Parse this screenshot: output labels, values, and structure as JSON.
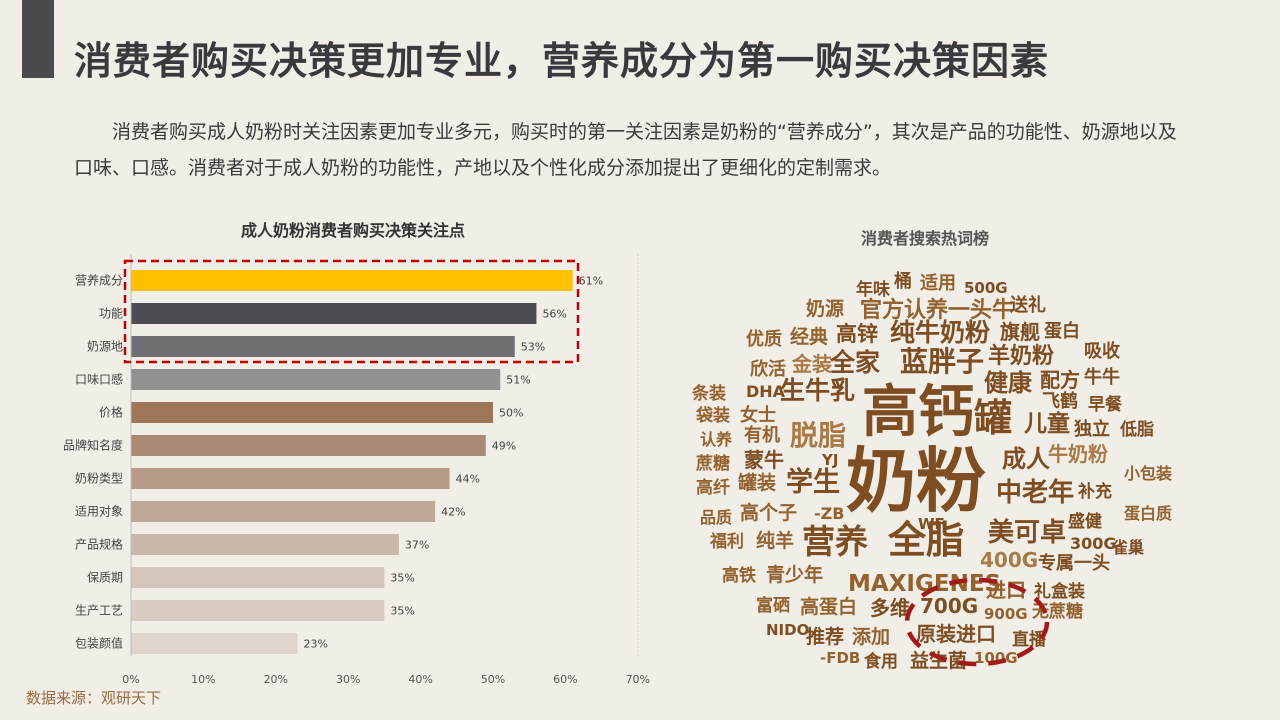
{
  "page": {
    "title": "消费者购买决策更加专业，营养成分为第一购买决策因素",
    "intro": "消费者购买成人奶粉时关注因素更加专业多元，购买时的第一关注因素是奶粉的“营养成分”，其次是产品的功能性、奶源地以及口味、口感。消费者对于成人奶粉的功能性，产地以及个性化成分添加提出了更细化的定制需求。",
    "source": "数据来源：观研天下"
  },
  "chart_data": {
    "type": "bar",
    "orientation": "horizontal",
    "title": "成人奶粉消费者购买决策关注点",
    "categories": [
      "营养成分",
      "功能",
      "奶源地",
      "口味口感",
      "价格",
      "品牌知名度",
      "奶粉类型",
      "适用对象",
      "产品规格",
      "保质期",
      "生产工艺",
      "包装颜值"
    ],
    "values": [
      61,
      56,
      53,
      51,
      50,
      49,
      44,
      42,
      37,
      35,
      35,
      23
    ],
    "value_labels": [
      "61%",
      "56%",
      "53%",
      "51%",
      "50%",
      "49%",
      "44%",
      "42%",
      "37%",
      "35%",
      "35%",
      "23%"
    ],
    "bar_colors": [
      "#ffc000",
      "#4d4c52",
      "#6f6e72",
      "#939190",
      "#9e7558",
      "#ab8a74",
      "#b59a87",
      "#bea897",
      "#c9b7a9",
      "#d4c6bb",
      "#d9ccc2",
      "#e0d5cc"
    ],
    "xlim": [
      0,
      70
    ],
    "xticks": [
      "0%",
      "10%",
      "20%",
      "30%",
      "40%",
      "50%",
      "60%",
      "70%"
    ],
    "highlight": "top-3 dashed red box",
    "highlight_color": "#c00000"
  },
  "word_cloud": {
    "title": "消费者搜索热词榜",
    "highlight_color": "#a31a1a",
    "words": [
      {
        "text": "桶"
      },
      {
        "text": "年味"
      },
      {
        "text": "适用"
      },
      {
        "text": "500G"
      },
      {
        "text": "奶源"
      },
      {
        "text": "官方认养一头牛"
      },
      {
        "text": "送礼"
      },
      {
        "text": "优质"
      },
      {
        "text": "经典"
      },
      {
        "text": "高锌"
      },
      {
        "text": "纯牛奶粉"
      },
      {
        "text": "旗舰"
      },
      {
        "text": "蛋白"
      },
      {
        "text": "欣活"
      },
      {
        "text": "金装"
      },
      {
        "text": "全家"
      },
      {
        "text": "蓝胖子"
      },
      {
        "text": "羊奶粉"
      },
      {
        "text": "吸收"
      },
      {
        "text": "条装"
      },
      {
        "text": "DHA"
      },
      {
        "text": "生牛乳"
      },
      {
        "text": "高钙"
      },
      {
        "text": "健康"
      },
      {
        "text": "配方"
      },
      {
        "text": "牛牛"
      },
      {
        "text": "袋装"
      },
      {
        "text": "女士"
      },
      {
        "text": "飞鹤"
      },
      {
        "text": "早餐"
      },
      {
        "text": "罐"
      },
      {
        "text": "儿童"
      },
      {
        "text": "独立"
      },
      {
        "text": "低脂"
      },
      {
        "text": "认养"
      },
      {
        "text": "有机"
      },
      {
        "text": "脱脂"
      },
      {
        "text": "蔗糖"
      },
      {
        "text": "蒙牛"
      },
      {
        "text": "奶粉"
      },
      {
        "text": "成人"
      },
      {
        "text": "牛奶粉"
      },
      {
        "text": "YJ"
      },
      {
        "text": "高纤"
      },
      {
        "text": "罐装"
      },
      {
        "text": "学生"
      },
      {
        "text": "小包装"
      },
      {
        "text": "中老年"
      },
      {
        "text": "补充"
      },
      {
        "text": "品质"
      },
      {
        "text": "高个子"
      },
      {
        "text": "-ZB"
      },
      {
        "text": "盛健"
      },
      {
        "text": "蛋白质"
      },
      {
        "text": "WF"
      },
      {
        "text": "福利"
      },
      {
        "text": "纯羊"
      },
      {
        "text": "营养"
      },
      {
        "text": "全脂"
      },
      {
        "text": "美可卓"
      },
      {
        "text": "300G"
      },
      {
        "text": "雀巢"
      },
      {
        "text": "400G"
      },
      {
        "text": "专属一头"
      },
      {
        "text": "高铁"
      },
      {
        "text": "青少年"
      },
      {
        "text": "MAXIGENES"
      },
      {
        "text": "进口"
      },
      {
        "text": "礼盒装"
      },
      {
        "text": "富硒"
      },
      {
        "text": "高蛋白"
      },
      {
        "text": "多维"
      },
      {
        "text": "700G"
      },
      {
        "text": "900G"
      },
      {
        "text": "无蔗糖"
      },
      {
        "text": "NIDO"
      },
      {
        "text": "推荐"
      },
      {
        "text": "添加"
      },
      {
        "text": "原装进口"
      },
      {
        "text": "直播"
      },
      {
        "text": "-FDB"
      },
      {
        "text": "食用"
      },
      {
        "text": "益生菌"
      },
      {
        "text": "100G"
      }
    ]
  }
}
